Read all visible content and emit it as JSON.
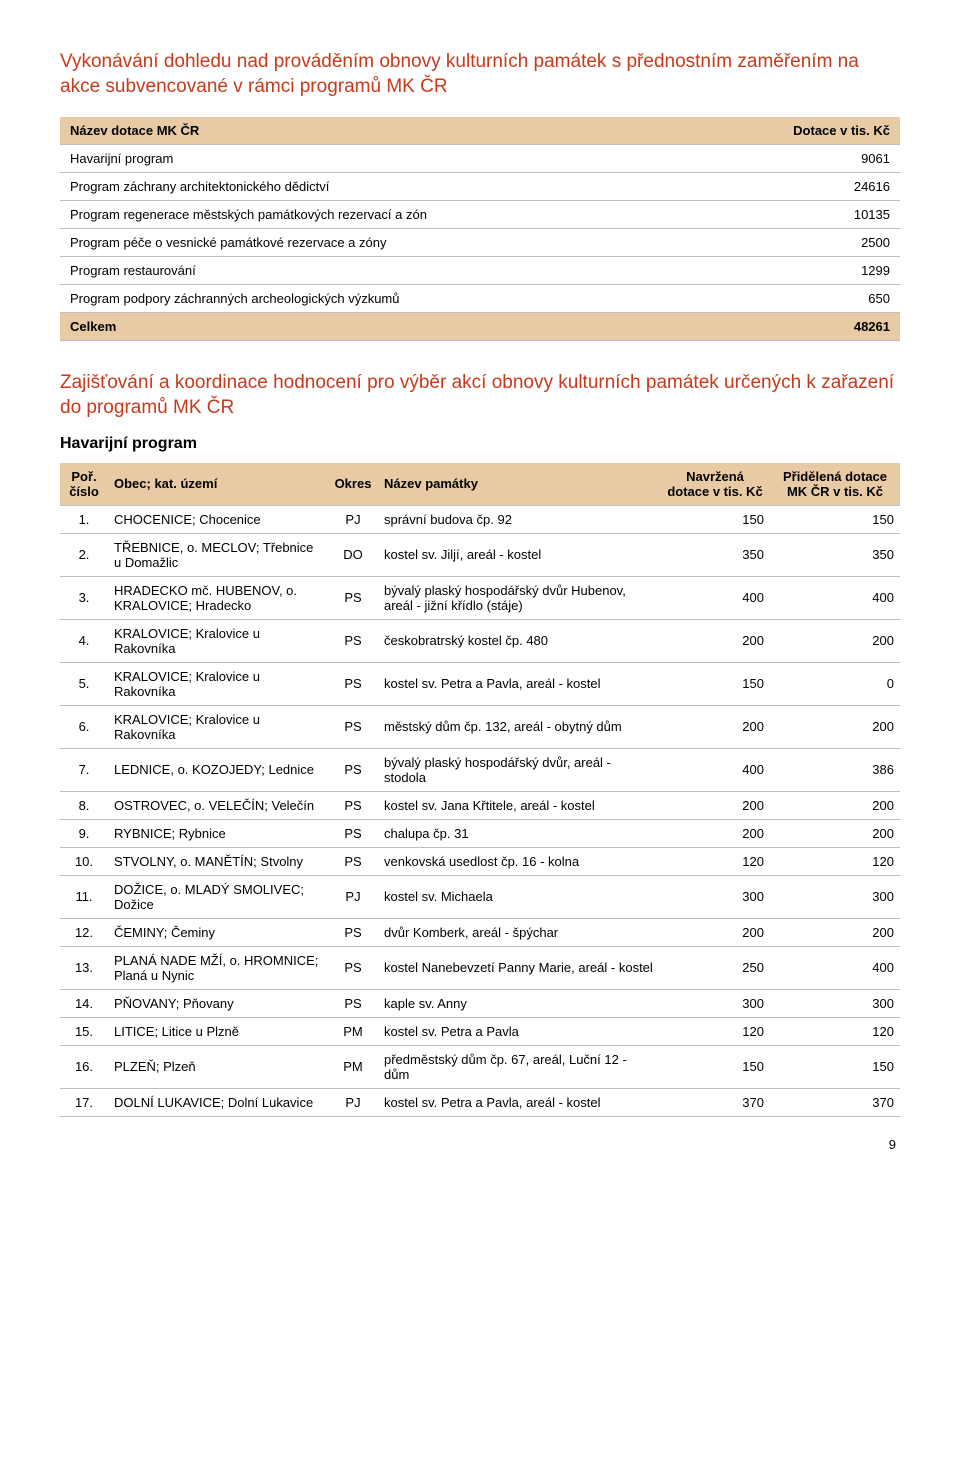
{
  "title1": "Vykonávání dohledu nad prováděním obnovy kulturních památek s přednostním zaměřením na akce subvencované v rámci programů MK ČR",
  "summary": {
    "header_name": "Název dotace MK ČR",
    "header_value": "Dotace v tis. Kč",
    "total_label": "Celkem",
    "total_value": "48261",
    "rows": [
      {
        "name": "Havarijní program",
        "value": "9061"
      },
      {
        "name": "Program záchrany architektonického dědictví",
        "value": "24616"
      },
      {
        "name": "Program regenerace městských památkových rezervací a zón",
        "value": "10135"
      },
      {
        "name": "Program péče o vesnické památkové rezervace a zóny",
        "value": "2500"
      },
      {
        "name": "Program restaurování",
        "value": "1299"
      },
      {
        "name": "Program podpory záchranných archeologických výzkumů",
        "value": "650"
      }
    ]
  },
  "title2": "Zajišťování a koordinace hodnocení pro výběr akcí obnovy kulturních památek určených k zařazení do programů MK ČR",
  "section": "Havarijní program",
  "detail": {
    "headers": {
      "num": "Poř. číslo",
      "obec": "Obec; kat. území",
      "okres": "Okres",
      "pamatka": "Název památky",
      "navrzena": "Navržená dotace v tis. Kč",
      "pridelena": "Přidělená dotace MK ČR v tis. Kč"
    },
    "rows": [
      {
        "n": "1.",
        "obec": "CHOCENICE; Chocenice",
        "okres": "PJ",
        "pam": "správní budova čp. 92",
        "nav": "150",
        "prid": "150"
      },
      {
        "n": "2.",
        "obec": "TŘEBNICE, o. MECLOV; Třebnice u Domažlic",
        "okres": "DO",
        "pam": "kostel sv. Jiljí, areál - kostel",
        "nav": "350",
        "prid": "350"
      },
      {
        "n": "3.",
        "obec": "HRADECKO mč. HUBENOV, o. KRALOVICE; Hradecko",
        "okres": "PS",
        "pam": "bývalý plaský hospodářský dvůr Hubenov, areál - jižní křídlo (stáje)",
        "nav": "400",
        "prid": "400"
      },
      {
        "n": "4.",
        "obec": "KRALOVICE; Kralovice u Rakovníka",
        "okres": "PS",
        "pam": "českobratrský kostel čp. 480",
        "nav": "200",
        "prid": "200"
      },
      {
        "n": "5.",
        "obec": "KRALOVICE; Kralovice u Rakovníka",
        "okres": "PS",
        "pam": "kostel sv. Petra a Pavla, areál - kostel",
        "nav": "150",
        "prid": "0"
      },
      {
        "n": "6.",
        "obec": "KRALOVICE; Kralovice u Rakovníka",
        "okres": "PS",
        "pam": "městský dům čp. 132, areál - obytný dům",
        "nav": "200",
        "prid": "200"
      },
      {
        "n": "7.",
        "obec": "LEDNICE, o. KOZOJEDY; Lednice",
        "okres": "PS",
        "pam": "bývalý plaský hospodářský dvůr, areál - stodola",
        "nav": "400",
        "prid": "386"
      },
      {
        "n": "8.",
        "obec": "OSTROVEC, o. VELEČÍN; Velečín",
        "okres": "PS",
        "pam": "kostel sv. Jana Křtitele, areál - kostel",
        "nav": "200",
        "prid": "200"
      },
      {
        "n": "9.",
        "obec": "RYBNICE; Rybnice",
        "okres": "PS",
        "pam": "chalupa čp. 31",
        "nav": "200",
        "prid": "200"
      },
      {
        "n": "10.",
        "obec": "STVOLNY, o. MANĚTÍN; Stvolny",
        "okres": "PS",
        "pam": "venkovská usedlost čp. 16 - kolna",
        "nav": "120",
        "prid": "120"
      },
      {
        "n": "11.",
        "obec": "DOŽICE, o. MLADÝ SMOLIVEC; Dožice",
        "okres": "PJ",
        "pam": "kostel sv. Michaela",
        "nav": "300",
        "prid": "300"
      },
      {
        "n": "12.",
        "obec": "ČEMINY; Čeminy",
        "okres": "PS",
        "pam": "dvůr Komberk, areál - špýchar",
        "nav": "200",
        "prid": "200"
      },
      {
        "n": "13.",
        "obec": "PLANÁ NADE MŽÍ, o. HROMNICE; Planá u Nynic",
        "okres": "PS",
        "pam": "kostel Nanebevzetí Panny Marie, areál - kostel",
        "nav": "250",
        "prid": "400"
      },
      {
        "n": "14.",
        "obec": "PŇOVANY; Pňovany",
        "okres": "PS",
        "pam": "kaple sv. Anny",
        "nav": "300",
        "prid": "300"
      },
      {
        "n": "15.",
        "obec": "LITICE; Litice u Plzně",
        "okres": "PM",
        "pam": "kostel sv. Petra a Pavla",
        "nav": "120",
        "prid": "120"
      },
      {
        "n": "16.",
        "obec": "PLZEŇ; Plzeň",
        "okres": "PM",
        "pam": "předměstský dům čp. 67, areál, Luční 12 - dům",
        "nav": "150",
        "prid": "150"
      },
      {
        "n": "17.",
        "obec": "DOLNÍ LUKAVICE; Dolní Lukavice",
        "okres": "PJ",
        "pam": "kostel sv. Petra a Pavla, areál - kostel",
        "nav": "370",
        "prid": "370"
      }
    ]
  },
  "page_number": "9",
  "colors": {
    "accent": "#c73a1b",
    "header_bg": "#e8caa4",
    "border": "#bfbfbf",
    "text": "#000000",
    "bg": "#ffffff"
  }
}
